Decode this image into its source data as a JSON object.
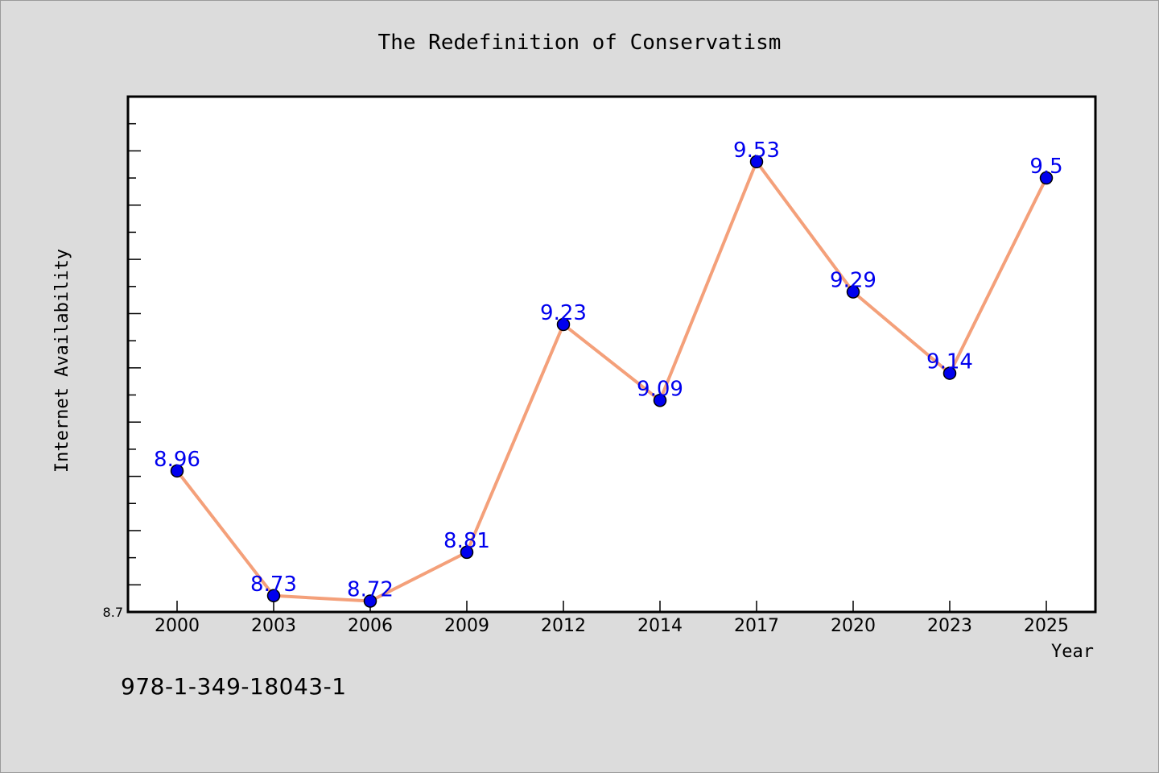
{
  "chart_data": {
    "type": "line",
    "title": "The Redefinition of Conservatism",
    "xlabel": "Year",
    "ylabel": "Internet Availability",
    "categories": [
      "2000",
      "2003",
      "2006",
      "2009",
      "2012",
      "2014",
      "2017",
      "2020",
      "2023",
      "2025"
    ],
    "series": [
      {
        "values": [
          8.96,
          8.73,
          8.72,
          8.81,
          9.23,
          9.09,
          9.53,
          9.29,
          9.14,
          9.5
        ]
      }
    ],
    "ylim": [
      8.7,
      9.65
    ],
    "y_tick_labels": [
      "8.7"
    ],
    "data_labels_shown": true,
    "grid": false,
    "legend": "none",
    "colors": {
      "line": "#f4a07a",
      "marker": "#0000ee",
      "marker_edge": "#000000",
      "data_label": "#0000ee",
      "plot_background": "#ffffff",
      "figure_background": "#dcdcdc"
    }
  },
  "footer": {
    "isbn": "978-1-349-18043-1"
  }
}
